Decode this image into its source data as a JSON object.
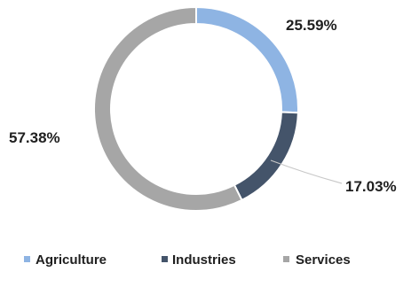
{
  "chart_data": {
    "type": "pie",
    "style": "donut",
    "categories": [
      "Agriculture",
      "Industries",
      "Services"
    ],
    "values": [
      25.59,
      17.03,
      57.38
    ],
    "value_labels": [
      "25.59%",
      "17.03%",
      "57.38%"
    ],
    "colors": [
      "#8eb4e3",
      "#44546a",
      "#a6a6a6"
    ],
    "legend_position": "bottom"
  }
}
